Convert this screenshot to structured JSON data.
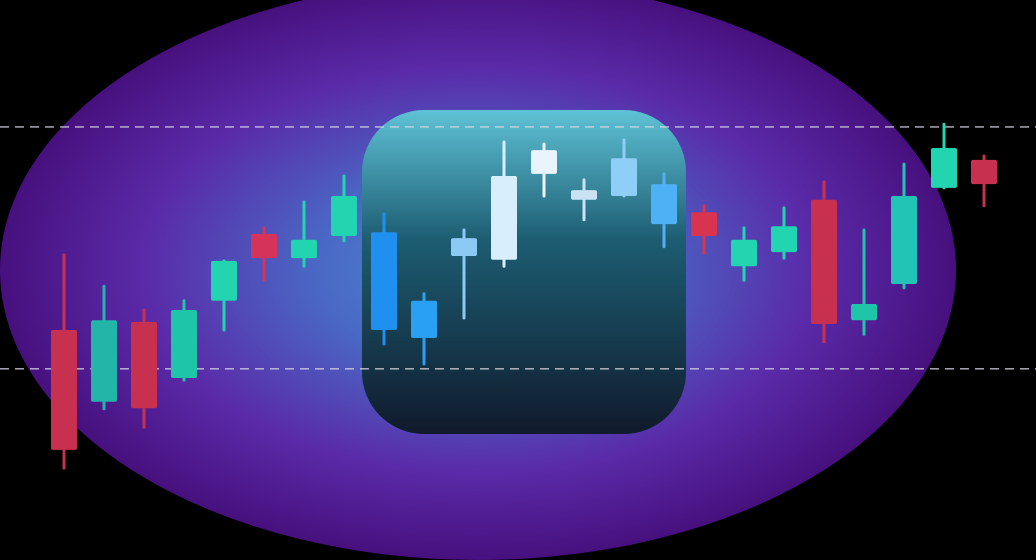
{
  "chart_data": {
    "type": "candlestick",
    "title": "",
    "xlabel": "",
    "ylabel": "",
    "grid": false,
    "legend": "none",
    "ylim": [
      0,
      100
    ],
    "reference_lines": [
      {
        "y": 76.5,
        "style": "dashed",
        "color": "#d9d9e6"
      },
      {
        "y": 31.7,
        "style": "dashed",
        "color": "#d9d9e6"
      }
    ],
    "candles": [
      {
        "open": 16.7,
        "close": 38.9,
        "high": 52.8,
        "low": 13.3,
        "color": "#c8304f"
      },
      {
        "open": 25.6,
        "close": 40.7,
        "high": 47.0,
        "low": 24.3,
        "color": "#22b5a8"
      },
      {
        "open": 24.4,
        "close": 40.4,
        "high": 42.6,
        "low": 20.9,
        "color": "#c8304f"
      },
      {
        "open": 30.0,
        "close": 42.6,
        "high": 44.3,
        "low": 29.6,
        "color": "#1fc5a7"
      },
      {
        "open": 44.3,
        "close": 51.7,
        "high": 51.7,
        "low": 38.9,
        "color": "#22d4b0"
      },
      {
        "open": 52.2,
        "close": 56.7,
        "high": 57.8,
        "low": 48.1,
        "color": "#d5335a"
      },
      {
        "open": 52.2,
        "close": 55.6,
        "high": 62.6,
        "low": 50.7,
        "color": "#22d4b0"
      },
      {
        "open": 56.3,
        "close": 63.7,
        "high": 67.4,
        "low": 55.4,
        "color": "#22d4b0"
      },
      {
        "open": 38.9,
        "close": 57.0,
        "high": 60.4,
        "low": 36.3,
        "color": "#1f8ff0"
      },
      {
        "open": 37.4,
        "close": 44.3,
        "high": 45.6,
        "low": 32.6,
        "color": "#2aa0f5"
      },
      {
        "open": 52.6,
        "close": 55.9,
        "high": 57.4,
        "low": 41.1,
        "color": "#8ccaf5"
      },
      {
        "open": 51.9,
        "close": 67.4,
        "high": 73.7,
        "low": 50.7,
        "color": "#d8eefc"
      },
      {
        "open": 67.8,
        "close": 72.2,
        "high": 73.3,
        "low": 63.7,
        "color": "#e9f4fc"
      },
      {
        "open": 63.0,
        "close": 64.8,
        "high": 66.7,
        "low": 59.3,
        "color": "#c9e3f5"
      },
      {
        "open": 63.7,
        "close": 70.7,
        "high": 74.1,
        "low": 63.7,
        "color": "#8fcff7"
      },
      {
        "open": 58.5,
        "close": 65.9,
        "high": 67.8,
        "low": 54.3,
        "color": "#4eb0f5"
      },
      {
        "open": 56.3,
        "close": 60.7,
        "high": 61.9,
        "low": 53.1,
        "color": "#d8344f"
      },
      {
        "open": 50.7,
        "close": 55.6,
        "high": 57.8,
        "low": 48.1,
        "color": "#22d4b0"
      },
      {
        "open": 53.3,
        "close": 58.1,
        "high": 61.5,
        "low": 52.2,
        "color": "#22d4b0"
      },
      {
        "open": 40.0,
        "close": 63.0,
        "high": 66.3,
        "low": 36.7,
        "color": "#c8304f"
      },
      {
        "open": 40.7,
        "close": 43.7,
        "high": 57.4,
        "low": 38.1,
        "color": "#1fc5a7"
      },
      {
        "open": 47.4,
        "close": 63.7,
        "high": 69.6,
        "low": 46.7,
        "color": "#22c4b5"
      },
      {
        "open": 65.2,
        "close": 72.6,
        "high": 77.0,
        "low": 65.2,
        "color": "#22d4b0"
      },
      {
        "open": 65.9,
        "close": 70.4,
        "high": 71.1,
        "low": 61.9,
        "color": "#c8304f"
      }
    ]
  }
}
